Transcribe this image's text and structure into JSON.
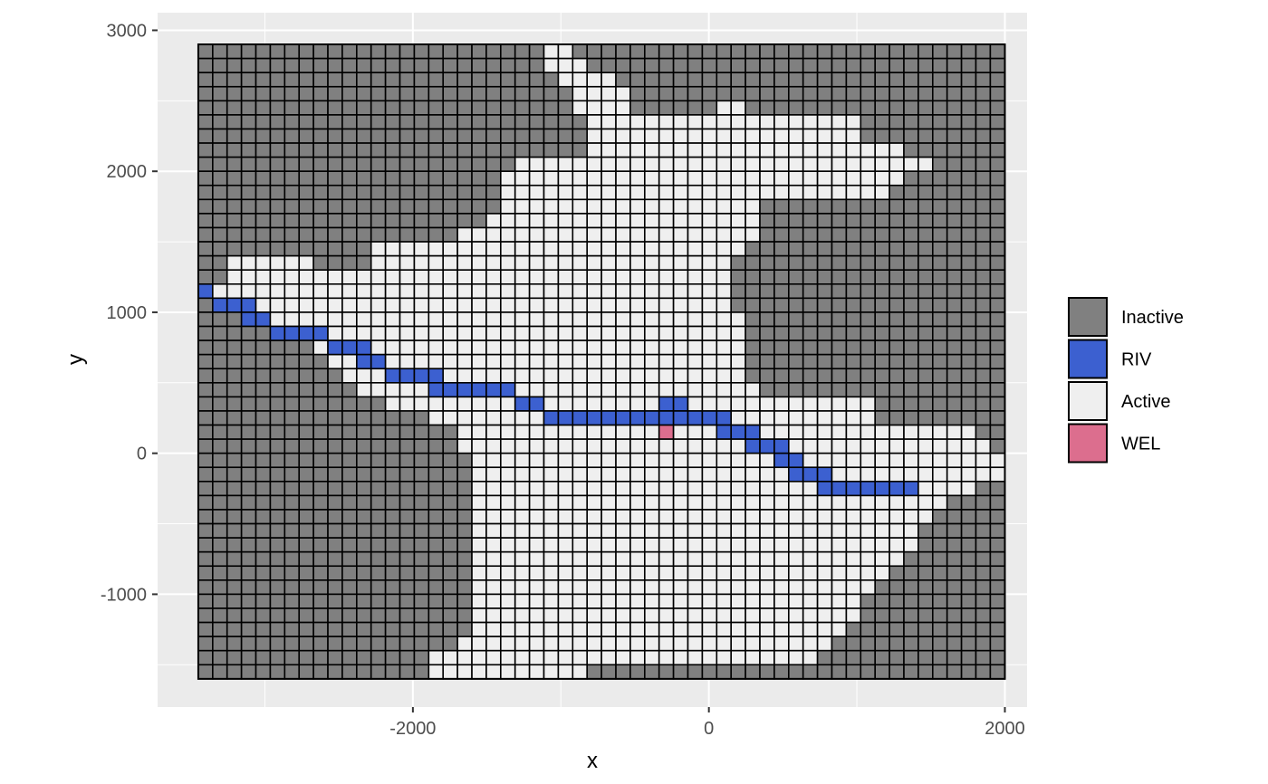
{
  "chart_data": {
    "type": "heatmap",
    "title": "",
    "xlabel": "x",
    "ylabel": "y",
    "xlim": [
      -3725,
      2150
    ],
    "ylim": [
      -1800,
      3125
    ],
    "x_ticks": [
      -2000,
      0,
      2000
    ],
    "x_tick_labels": [
      "-2000",
      "0",
      "2000"
    ],
    "y_ticks": [
      -1000,
      0,
      1000,
      2000,
      3000
    ],
    "y_tick_labels": [
      "-1000",
      "0",
      "1000",
      "2000",
      "3000"
    ],
    "grid": true,
    "legend_position": "right",
    "legend": [
      {
        "label": "Inactive",
        "color": "#808080"
      },
      {
        "label": "RIV",
        "color": "#3c60d0"
      },
      {
        "label": "Active",
        "color": "#efefef"
      },
      {
        "label": "WEL",
        "color": "#dc6e8e"
      }
    ],
    "grid_model": {
      "x_min": -3450,
      "x_max": 2000,
      "y_min": -1600,
      "y_max": 2900,
      "ncol": 56,
      "nrow": 45,
      "cell_dx": 97.3,
      "cell_dy": 100,
      "default_class": "Inactive",
      "active_ranges": [
        [
          [
            24,
            25
          ]
        ],
        [
          [
            24,
            26
          ]
        ],
        [
          [
            25,
            28
          ]
        ],
        [
          [
            26,
            29
          ]
        ],
        [
          [
            26,
            29
          ],
          [
            36,
            37
          ]
        ],
        [
          [
            27,
            45
          ]
        ],
        [
          [
            27,
            45
          ]
        ],
        [
          [
            27,
            48
          ]
        ],
        [
          [
            22,
            50
          ]
        ],
        [
          [
            21,
            48
          ]
        ],
        [
          [
            21,
            47
          ]
        ],
        [
          [
            21,
            38
          ]
        ],
        [
          [
            20,
            38
          ]
        ],
        [
          [
            18,
            38
          ]
        ],
        [
          [
            12,
            37
          ]
        ],
        [
          [
            2,
            7
          ],
          [
            12,
            36
          ]
        ],
        [
          [
            2,
            36
          ]
        ],
        [
          [
            1,
            36
          ]
        ],
        [
          [
            2,
            36
          ]
        ],
        [
          [
            3,
            37
          ]
        ],
        [
          [
            5,
            37
          ]
        ],
        [
          [
            8,
            37
          ]
        ],
        [
          [
            9,
            37
          ]
        ],
        [
          [
            10,
            37
          ]
        ],
        [
          [
            11,
            38
          ]
        ],
        [
          [
            13,
            46
          ]
        ],
        [
          [
            16,
            46
          ]
        ],
        [
          [
            18,
            53
          ]
        ],
        [
          [
            18,
            54
          ]
        ],
        [
          [
            19,
            55
          ]
        ],
        [
          [
            19,
            55
          ]
        ],
        [
          [
            19,
            53
          ]
        ],
        [
          [
            19,
            51
          ]
        ],
        [
          [
            19,
            50
          ]
        ],
        [
          [
            19,
            49
          ]
        ],
        [
          [
            19,
            49
          ]
        ],
        [
          [
            19,
            48
          ]
        ],
        [
          [
            19,
            47
          ]
        ],
        [
          [
            19,
            46
          ]
        ],
        [
          [
            19,
            45
          ]
        ],
        [
          [
            19,
            45
          ]
        ],
        [
          [
            19,
            44
          ]
        ],
        [
          [
            18,
            43
          ]
        ],
        [
          [
            16,
            42
          ]
        ],
        [
          [
            16,
            26
          ]
        ]
      ],
      "riv_cells": [
        [
          17,
          0
        ],
        [
          18,
          1
        ],
        [
          18,
          2
        ],
        [
          18,
          3
        ],
        [
          19,
          3
        ],
        [
          19,
          4
        ],
        [
          20,
          5
        ],
        [
          20,
          6
        ],
        [
          20,
          7
        ],
        [
          20,
          8
        ],
        [
          21,
          9
        ],
        [
          21,
          10
        ],
        [
          21,
          11
        ],
        [
          22,
          11
        ],
        [
          22,
          12
        ],
        [
          23,
          13
        ],
        [
          23,
          14
        ],
        [
          23,
          15
        ],
        [
          23,
          16
        ],
        [
          24,
          16
        ],
        [
          24,
          17
        ],
        [
          24,
          18
        ],
        [
          24,
          19
        ],
        [
          24,
          20
        ],
        [
          24,
          21
        ],
        [
          25,
          22
        ],
        [
          25,
          23
        ],
        [
          26,
          24
        ],
        [
          26,
          25
        ],
        [
          26,
          26
        ],
        [
          26,
          27
        ],
        [
          26,
          28
        ],
        [
          26,
          29
        ],
        [
          26,
          30
        ],
        [
          26,
          31
        ],
        [
          26,
          32
        ],
        [
          25,
          32
        ],
        [
          25,
          33
        ],
        [
          26,
          33
        ],
        [
          26,
          34
        ],
        [
          26,
          35
        ],
        [
          26,
          36
        ],
        [
          27,
          36
        ],
        [
          27,
          37
        ],
        [
          27,
          38
        ],
        [
          28,
          38
        ],
        [
          28,
          39
        ],
        [
          28,
          40
        ],
        [
          29,
          40
        ],
        [
          29,
          41
        ],
        [
          30,
          41
        ],
        [
          30,
          42
        ],
        [
          30,
          43
        ],
        [
          31,
          43
        ],
        [
          31,
          44
        ],
        [
          31,
          45
        ],
        [
          31,
          46
        ],
        [
          31,
          47
        ],
        [
          31,
          48
        ],
        [
          31,
          49
        ]
      ],
      "wel_cells": [
        [
          27,
          32
        ]
      ]
    }
  }
}
